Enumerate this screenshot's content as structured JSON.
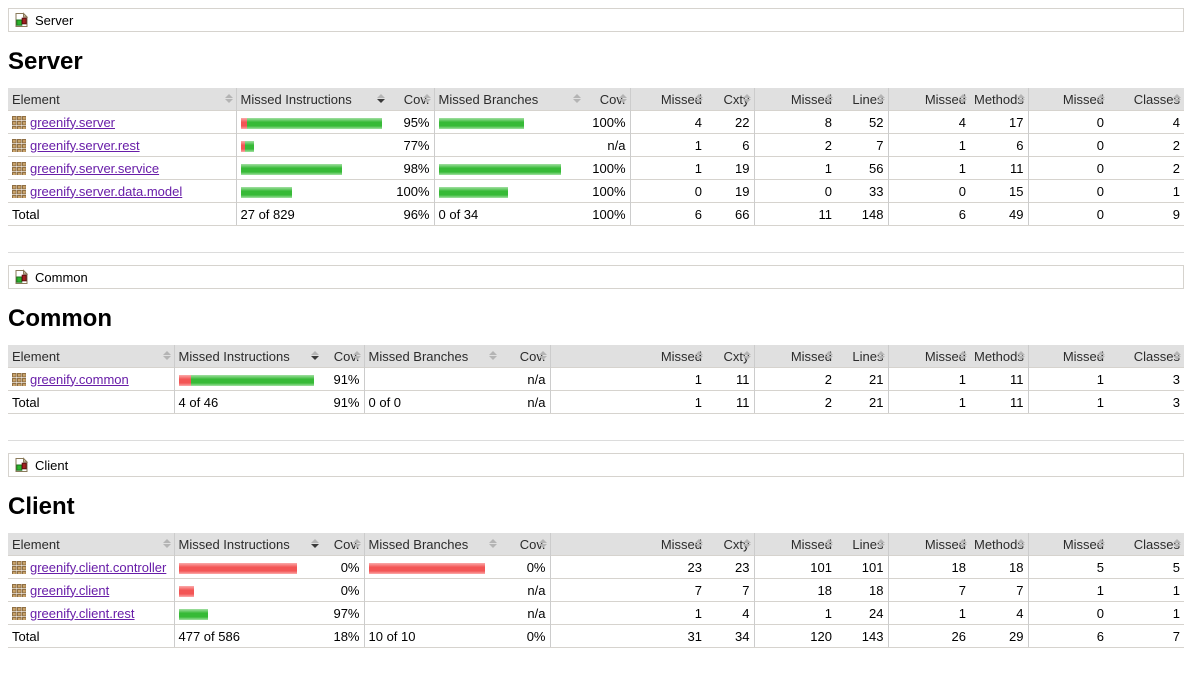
{
  "colors": {
    "green_bar": "#37ba37",
    "red_bar": "#f35555",
    "header_bg": "#e0e0e0",
    "row_border": "#d6d3ce",
    "group_border": "#cccccc",
    "link": "#681da8"
  },
  "columns": [
    "Element",
    "Missed Instructions",
    "Cov.",
    "Missed Branches",
    "Cov.",
    "Missed",
    "Cxty",
    "Missed",
    "Lines",
    "Missed",
    "Methods",
    "Missed",
    "Classes"
  ],
  "sorted_column": "Missed Instructions",
  "chart_data": {
    "type": "table",
    "note": "JaCoCo coverage report bars; bar widths in px reflect relative package size, red = missed, green = covered"
  },
  "sections": [
    {
      "breadcrumb": "Server",
      "title": "Server",
      "rows": [
        {
          "name": "greenify.server",
          "ins": {
            "red": 6,
            "green": 135,
            "cov": "95%"
          },
          "br": {
            "red": 0,
            "green": 85,
            "cov": "100%"
          },
          "ctrs": [
            "4",
            "22",
            "8",
            "52",
            "4",
            "17",
            "0",
            "4"
          ]
        },
        {
          "name": "greenify.server.rest",
          "ins": {
            "red": 4,
            "green": 9,
            "cov": "77%"
          },
          "br": {
            "red": 0,
            "green": 0,
            "cov": "n/a"
          },
          "ctrs": [
            "1",
            "6",
            "2",
            "7",
            "1",
            "6",
            "0",
            "2"
          ]
        },
        {
          "name": "greenify.server.service",
          "ins": {
            "red": 0,
            "green": 101,
            "cov": "98%"
          },
          "br": {
            "red": 0,
            "green": 122,
            "cov": "100%"
          },
          "ctrs": [
            "1",
            "19",
            "1",
            "56",
            "1",
            "11",
            "0",
            "2"
          ]
        },
        {
          "name": "greenify.server.data.model",
          "ins": {
            "red": 0,
            "green": 51,
            "cov": "100%"
          },
          "br": {
            "red": 0,
            "green": 69,
            "cov": "100%"
          },
          "ctrs": [
            "0",
            "19",
            "0",
            "33",
            "0",
            "15",
            "0",
            "1"
          ]
        }
      ],
      "total": {
        "label": "Total",
        "ins_text": "27 of 829",
        "ins_cov": "96%",
        "br_text": "0 of 34",
        "br_cov": "100%",
        "ctrs": [
          "6",
          "66",
          "11",
          "148",
          "6",
          "49",
          "0",
          "9"
        ]
      }
    },
    {
      "breadcrumb": "Common",
      "title": "Common",
      "rows": [
        {
          "name": "greenify.common",
          "ins": {
            "red": 12,
            "green": 123,
            "cov": "91%"
          },
          "br": {
            "red": 0,
            "green": 0,
            "cov": "n/a"
          },
          "ctrs": [
            "1",
            "11",
            "2",
            "21",
            "1",
            "11",
            "1",
            "3"
          ]
        }
      ],
      "total": {
        "label": "Total",
        "ins_text": "4 of 46",
        "ins_cov": "91%",
        "br_text": "0 of 0",
        "br_cov": "n/a",
        "ctrs": [
          "1",
          "11",
          "2",
          "21",
          "1",
          "11",
          "1",
          "3"
        ]
      }
    },
    {
      "breadcrumb": "Client",
      "title": "Client",
      "rows": [
        {
          "name": "greenify.client.controller",
          "ins": {
            "red": 118,
            "green": 0,
            "cov": "0%"
          },
          "br": {
            "red": 116,
            "green": 0,
            "cov": "0%"
          },
          "ctrs": [
            "23",
            "23",
            "101",
            "101",
            "18",
            "18",
            "5",
            "5"
          ]
        },
        {
          "name": "greenify.client",
          "ins": {
            "red": 15,
            "green": 0,
            "cov": "0%"
          },
          "br": {
            "red": 0,
            "green": 0,
            "cov": "n/a"
          },
          "ctrs": [
            "7",
            "7",
            "18",
            "18",
            "7",
            "7",
            "1",
            "1"
          ]
        },
        {
          "name": "greenify.client.rest",
          "ins": {
            "red": 0,
            "green": 29,
            "cov": "97%"
          },
          "br": {
            "red": 0,
            "green": 0,
            "cov": "n/a"
          },
          "ctrs": [
            "1",
            "4",
            "1",
            "24",
            "1",
            "4",
            "0",
            "1"
          ]
        }
      ],
      "total": {
        "label": "Total",
        "ins_text": "477 of 586",
        "ins_cov": "18%",
        "br_text": "10 of 10",
        "br_cov": "0%",
        "ctrs": [
          "31",
          "34",
          "120",
          "143",
          "26",
          "29",
          "6",
          "7"
        ]
      }
    }
  ]
}
